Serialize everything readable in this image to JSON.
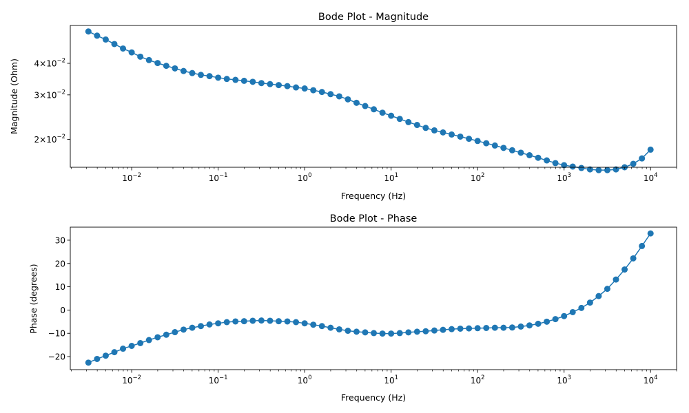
{
  "chart_data": [
    {
      "type": "line",
      "title": "Bode Plot - Magnitude",
      "xlabel": "Frequency (Hz)",
      "ylabel": "Magnitude (Ohm)",
      "xscale": "log",
      "yscale": "log",
      "xlim": [
        0.00195,
        20000
      ],
      "ylim": [
        0.0155,
        0.0565
      ],
      "x_ticks": [
        {
          "value": 0.01,
          "base": "10",
          "exp": "−2"
        },
        {
          "value": 0.1,
          "base": "10",
          "exp": "−1"
        },
        {
          "value": 1,
          "base": "10",
          "exp": "0"
        },
        {
          "value": 10,
          "base": "10",
          "exp": "1"
        },
        {
          "value": 100,
          "base": "10",
          "exp": "2"
        },
        {
          "value": 1000,
          "base": "10",
          "exp": "3"
        },
        {
          "value": 10000,
          "base": "10",
          "exp": "4"
        }
      ],
      "y_ticks": [
        {
          "value": 0.04,
          "base": "4×10",
          "exp": "−2"
        },
        {
          "value": 0.03,
          "base": "3×10",
          "exp": "−2"
        },
        {
          "value": 0.02,
          "base": "2×10",
          "exp": "−2"
        }
      ],
      "color": "#1f77b4",
      "grid": false,
      "series": [
        {
          "x": [
            0.00316,
            0.00398,
            0.00501,
            0.00631,
            0.00794,
            0.01,
            0.01259,
            0.01585,
            0.01995,
            0.02512,
            0.03162,
            0.03981,
            0.05012,
            0.0631,
            0.07943,
            0.1,
            0.1259,
            0.1585,
            0.1995,
            0.2512,
            0.3162,
            0.3981,
            0.5012,
            0.631,
            0.7943,
            1,
            1.259,
            1.585,
            1.995,
            2.512,
            3.162,
            3.981,
            5.012,
            6.31,
            7.943,
            10,
            12.59,
            15.85,
            19.95,
            25.12,
            31.62,
            39.81,
            50.12,
            63.1,
            79.43,
            100,
            125.9,
            158.5,
            199.5,
            251.2,
            316.2,
            398.1,
            501.2,
            631,
            794.3,
            1000,
            1259,
            1585,
            1995,
            2512,
            3162,
            3981,
            5012,
            6310,
            7943,
            10000
          ],
          "y": [
            0.0535,
            0.0515,
            0.0497,
            0.0477,
            0.0458,
            0.0442,
            0.0425,
            0.0412,
            0.0401,
            0.0391,
            0.0382,
            0.0373,
            0.0366,
            0.036,
            0.0356,
            0.0351,
            0.0347,
            0.0344,
            0.0341,
            0.0338,
            0.0334,
            0.0331,
            0.0328,
            0.0325,
            0.0321,
            0.0318,
            0.0313,
            0.0308,
            0.0302,
            0.0296,
            0.0288,
            0.0279,
            0.0271,
            0.0263,
            0.0255,
            0.0248,
            0.0241,
            0.0234,
            0.0228,
            0.0222,
            0.0217,
            0.0213,
            0.0209,
            0.0205,
            0.0201,
            0.0197,
            0.0193,
            0.0189,
            0.0185,
            0.0181,
            0.0177,
            0.0173,
            0.0169,
            0.0165,
            0.0161,
            0.0158,
            0.0156,
            0.0154,
            0.0152,
            0.0151,
            0.0151,
            0.0152,
            0.0155,
            0.016,
            0.0168,
            0.0182
          ]
        }
      ]
    },
    {
      "type": "line",
      "title": "Bode Plot - Phase",
      "xlabel": "Frequency (Hz)",
      "ylabel": "Phase (degrees)",
      "xscale": "log",
      "yscale": "linear",
      "xlim": [
        0.00195,
        20000
      ],
      "ylim": [
        -25.6,
        35.6
      ],
      "x_ticks": [
        {
          "value": 0.01,
          "base": "10",
          "exp": "−2"
        },
        {
          "value": 0.1,
          "base": "10",
          "exp": "−1"
        },
        {
          "value": 1,
          "base": "10",
          "exp": "0"
        },
        {
          "value": 10,
          "base": "10",
          "exp": "1"
        },
        {
          "value": 100,
          "base": "10",
          "exp": "2"
        },
        {
          "value": 1000,
          "base": "10",
          "exp": "3"
        },
        {
          "value": 10000,
          "base": "10",
          "exp": "4"
        }
      ],
      "y_ticks": [
        {
          "value": 30,
          "label": "30"
        },
        {
          "value": 20,
          "label": "20"
        },
        {
          "value": 10,
          "label": "10"
        },
        {
          "value": 0,
          "label": "0"
        },
        {
          "value": -10,
          "label": "−10"
        },
        {
          "value": -20,
          "label": "−20"
        }
      ],
      "color": "#1f77b4",
      "grid": false,
      "series": [
        {
          "x": [
            0.00316,
            0.00398,
            0.00501,
            0.00631,
            0.00794,
            0.01,
            0.01259,
            0.01585,
            0.01995,
            0.02512,
            0.03162,
            0.03981,
            0.05012,
            0.0631,
            0.07943,
            0.1,
            0.1259,
            0.1585,
            0.1995,
            0.2512,
            0.3162,
            0.3981,
            0.5012,
            0.631,
            0.7943,
            1,
            1.259,
            1.585,
            1.995,
            2.512,
            3.162,
            3.981,
            5.012,
            6.31,
            7.943,
            10,
            12.59,
            15.85,
            19.95,
            25.12,
            31.62,
            39.81,
            50.12,
            63.1,
            79.43,
            100,
            125.9,
            158.5,
            199.5,
            251.2,
            316.2,
            398.1,
            501.2,
            631,
            794.3,
            1000,
            1259,
            1585,
            1995,
            2512,
            3162,
            3981,
            5012,
            6310,
            7943,
            10000
          ],
          "y": [
            -22.6,
            -21.0,
            -19.6,
            -18.1,
            -16.6,
            -15.4,
            -14.2,
            -12.9,
            -11.7,
            -10.6,
            -9.5,
            -8.4,
            -7.6,
            -6.9,
            -6.2,
            -5.7,
            -5.2,
            -4.9,
            -4.8,
            -4.6,
            -4.5,
            -4.6,
            -4.8,
            -4.9,
            -5.2,
            -5.7,
            -6.3,
            -6.9,
            -7.6,
            -8.3,
            -8.9,
            -9.3,
            -9.6,
            -9.9,
            -10.1,
            -10.1,
            -9.9,
            -9.6,
            -9.3,
            -9.1,
            -8.8,
            -8.5,
            -8.2,
            -8.0,
            -7.9,
            -7.8,
            -7.7,
            -7.6,
            -7.6,
            -7.5,
            -7.1,
            -6.6,
            -5.9,
            -5.0,
            -3.9,
            -2.6,
            -0.9,
            0.9,
            3.2,
            6.0,
            9.1,
            13.1,
            17.4,
            22.2,
            27.5,
            32.9
          ]
        }
      ]
    }
  ]
}
